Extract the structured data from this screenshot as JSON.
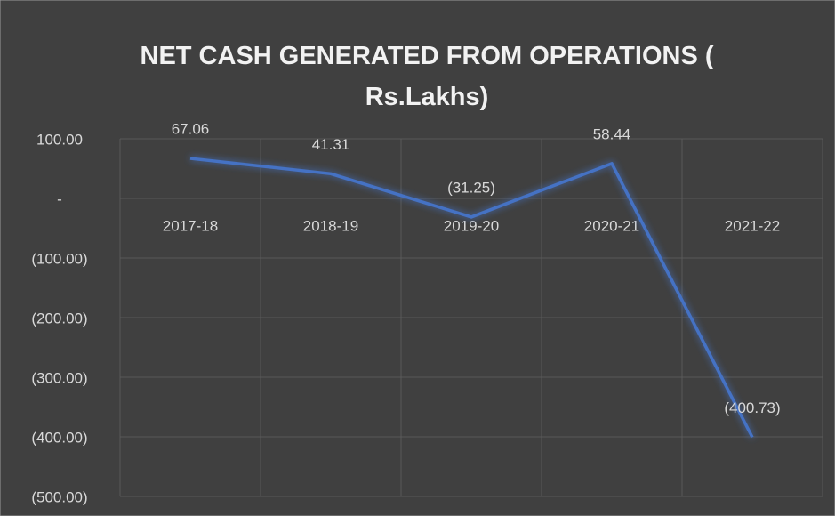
{
  "chart_data": {
    "type": "line",
    "title": "NET CASH GENERATED FROM OPERATIONS ( Rs.Lakhs)",
    "categories": [
      "2017-18",
      "2018-19",
      "2019-20",
      "2020-21",
      "2021-22"
    ],
    "series": [
      {
        "name": "Net cash generated from operations",
        "color": "#4472c4",
        "values": [
          67.06,
          41.31,
          -31.25,
          58.44,
          -400.73
        ],
        "value_labels": [
          "67.06",
          "41.31",
          "(31.25)",
          "58.44",
          "(400.73)"
        ]
      }
    ],
    "ylim": [
      -500,
      100
    ],
    "yticks": [
      {
        "value": -500,
        "label": "(500.00)"
      },
      {
        "value": -400,
        "label": "(400.00)"
      },
      {
        "value": -300,
        "label": "(300.00)"
      },
      {
        "value": -200,
        "label": "(200.00)"
      },
      {
        "value": -100,
        "label": "(100.00)"
      },
      {
        "value": 0,
        "label": "-"
      },
      {
        "value": 100,
        "label": "100.00"
      }
    ],
    "grid": true
  }
}
